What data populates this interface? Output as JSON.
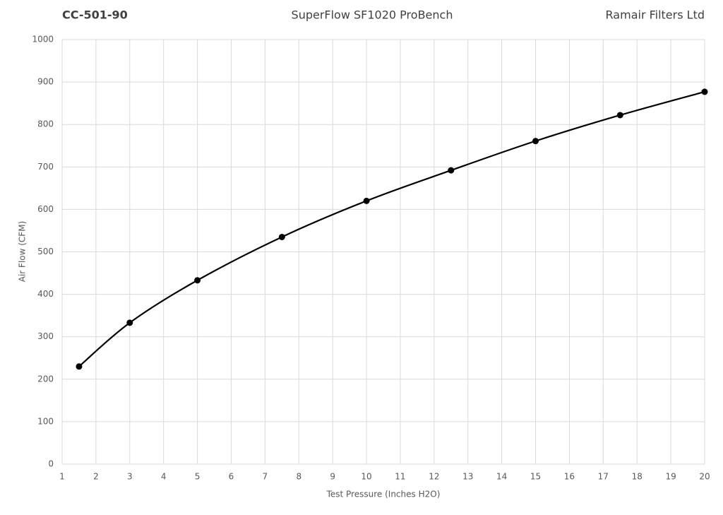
{
  "chart_data": {
    "type": "line",
    "smooth": true,
    "code": "CC-501-90",
    "title": "SuperFlow SF1020 ProBench",
    "company": "Ramair Filters Ltd",
    "x_label": "Test Pressure (Inches H2O)",
    "y_label": "Air Flow (CFM)",
    "x": [
      1.5,
      3,
      5,
      7.5,
      10,
      12.5,
      15,
      17.5,
      20
    ],
    "values": [
      230,
      333,
      433,
      535,
      620,
      692,
      761,
      822,
      877
    ],
    "color": "#000000",
    "xlim": [
      1,
      20
    ],
    "xticks": [
      1,
      2,
      3,
      4,
      5,
      6,
      7,
      8,
      9,
      10,
      11,
      12,
      13,
      14,
      15,
      16,
      17,
      18,
      19,
      20
    ],
    "ylim": [
      0,
      1000
    ],
    "yticks": [
      0,
      100,
      200,
      300,
      400,
      500,
      600,
      700,
      800,
      900,
      1000
    ],
    "grid": true
  }
}
